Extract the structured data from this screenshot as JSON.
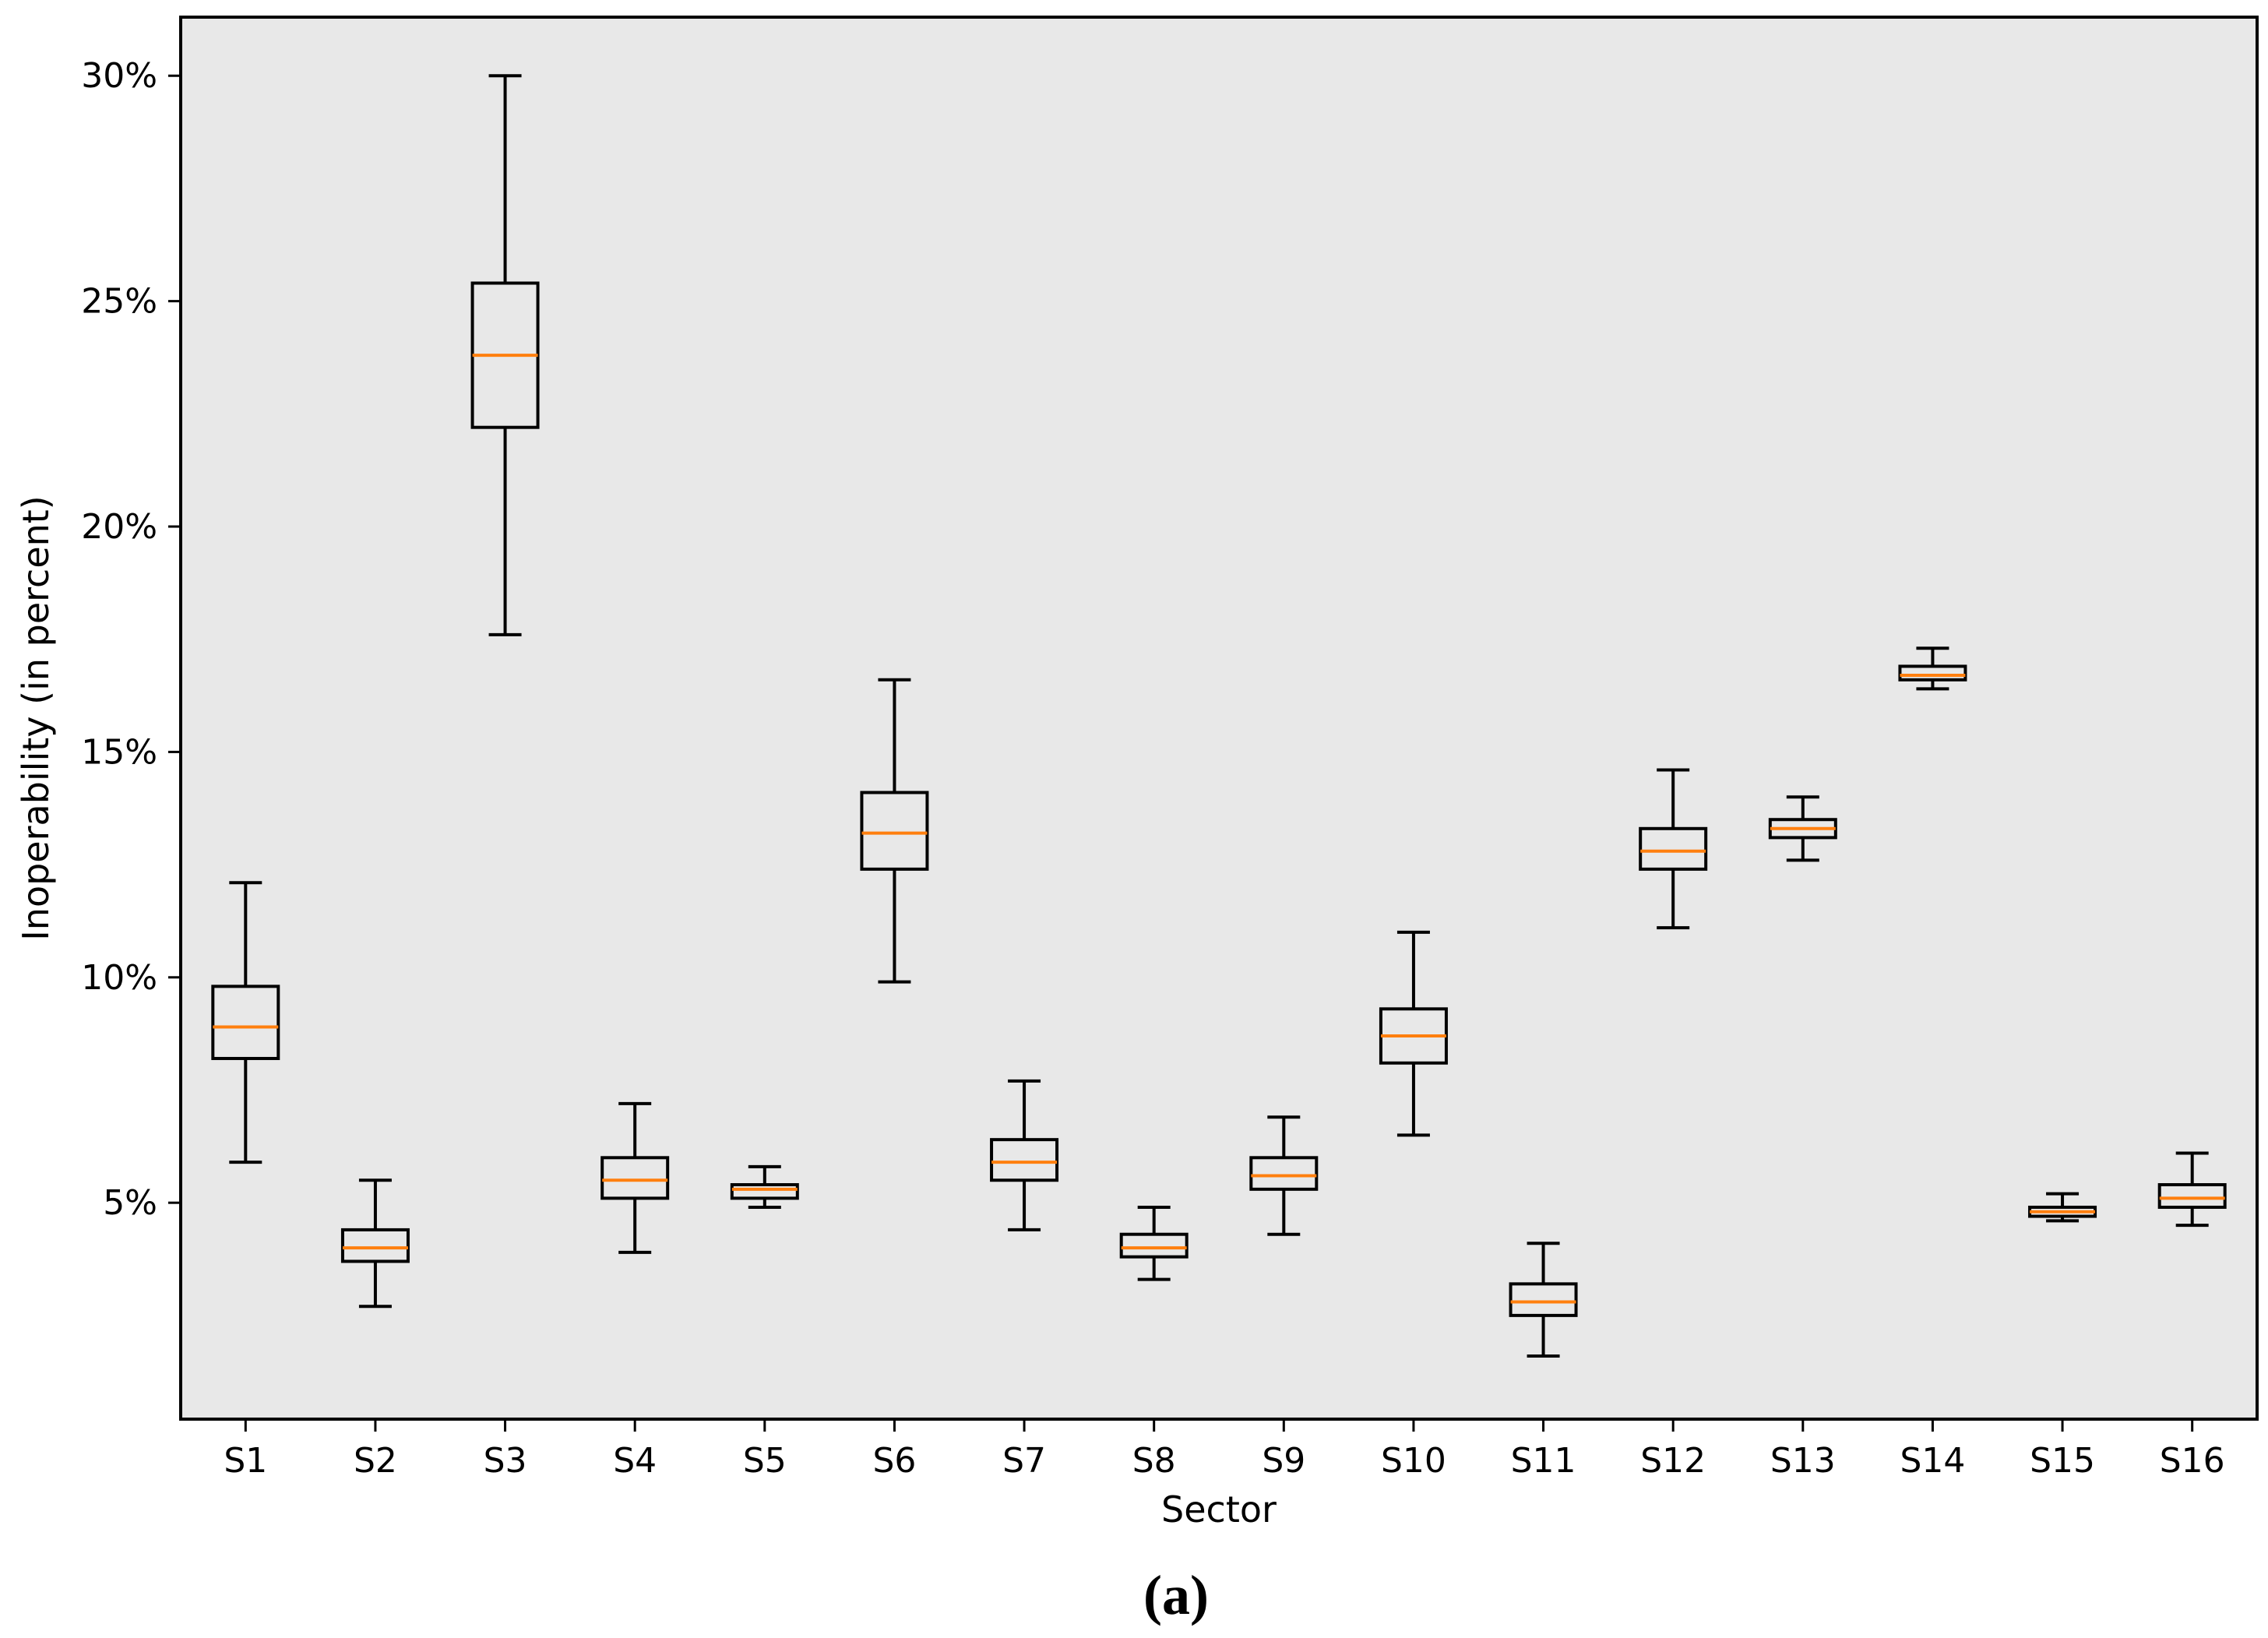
{
  "chart_data": {
    "type": "box",
    "title": "",
    "xlabel": "Sector",
    "ylabel": "Inoperability (in percent)",
    "ylim": [
      0.2,
      31.3
    ],
    "yticks": [
      5,
      10,
      15,
      20,
      25,
      30
    ],
    "ytick_labels": [
      "5%",
      "10%",
      "15%",
      "20%",
      "25%",
      "30%"
    ],
    "grid": false,
    "caption": "(a)",
    "colors": {
      "plot_background": "#e8e8e8",
      "box_edge": "#000000",
      "median": "#ff7f0e",
      "page_background": "#ffffff"
    },
    "categories": [
      "S1",
      "S2",
      "S3",
      "S4",
      "S5",
      "S6",
      "S7",
      "S8",
      "S9",
      "S10",
      "S11",
      "S12",
      "S13",
      "S14",
      "S15",
      "S16"
    ],
    "boxes": [
      {
        "label": "S1",
        "whislo": 5.9,
        "q1": 8.2,
        "med": 8.9,
        "q3": 9.8,
        "whishi": 12.1
      },
      {
        "label": "S2",
        "whislo": 2.7,
        "q1": 3.7,
        "med": 4.0,
        "q3": 4.4,
        "whishi": 5.5
      },
      {
        "label": "S3",
        "whislo": 17.6,
        "q1": 22.2,
        "med": 23.8,
        "q3": 25.4,
        "whishi": 30.0
      },
      {
        "label": "S4",
        "whislo": 3.9,
        "q1": 5.1,
        "med": 5.5,
        "q3": 6.0,
        "whishi": 7.2
      },
      {
        "label": "S5",
        "whislo": 4.9,
        "q1": 5.1,
        "med": 5.3,
        "q3": 5.4,
        "whishi": 5.8
      },
      {
        "label": "S6",
        "whislo": 9.9,
        "q1": 12.4,
        "med": 13.2,
        "q3": 14.1,
        "whishi": 16.6
      },
      {
        "label": "S7",
        "whislo": 4.4,
        "q1": 5.5,
        "med": 5.9,
        "q3": 6.4,
        "whishi": 7.7
      },
      {
        "label": "S8",
        "whislo": 3.3,
        "q1": 3.8,
        "med": 4.0,
        "q3": 4.3,
        "whishi": 4.9
      },
      {
        "label": "S9",
        "whislo": 4.3,
        "q1": 5.3,
        "med": 5.6,
        "q3": 6.0,
        "whishi": 6.9
      },
      {
        "label": "S10",
        "whislo": 6.5,
        "q1": 8.1,
        "med": 8.7,
        "q3": 9.3,
        "whishi": 11.0
      },
      {
        "label": "S11",
        "whislo": 1.6,
        "q1": 2.5,
        "med": 2.8,
        "q3": 3.2,
        "whishi": 4.1
      },
      {
        "label": "S12",
        "whislo": 11.1,
        "q1": 12.4,
        "med": 12.8,
        "q3": 13.3,
        "whishi": 14.6
      },
      {
        "label": "S13",
        "whislo": 12.6,
        "q1": 13.1,
        "med": 13.3,
        "q3": 13.5,
        "whishi": 14.0
      },
      {
        "label": "S14",
        "whislo": 16.4,
        "q1": 16.6,
        "med": 16.7,
        "q3": 16.9,
        "whishi": 17.3
      },
      {
        "label": "S15",
        "whislo": 4.6,
        "q1": 4.7,
        "med": 4.8,
        "q3": 4.9,
        "whishi": 5.2
      },
      {
        "label": "S16",
        "whislo": 4.5,
        "q1": 4.9,
        "med": 5.1,
        "q3": 5.4,
        "whishi": 6.1
      }
    ]
  }
}
